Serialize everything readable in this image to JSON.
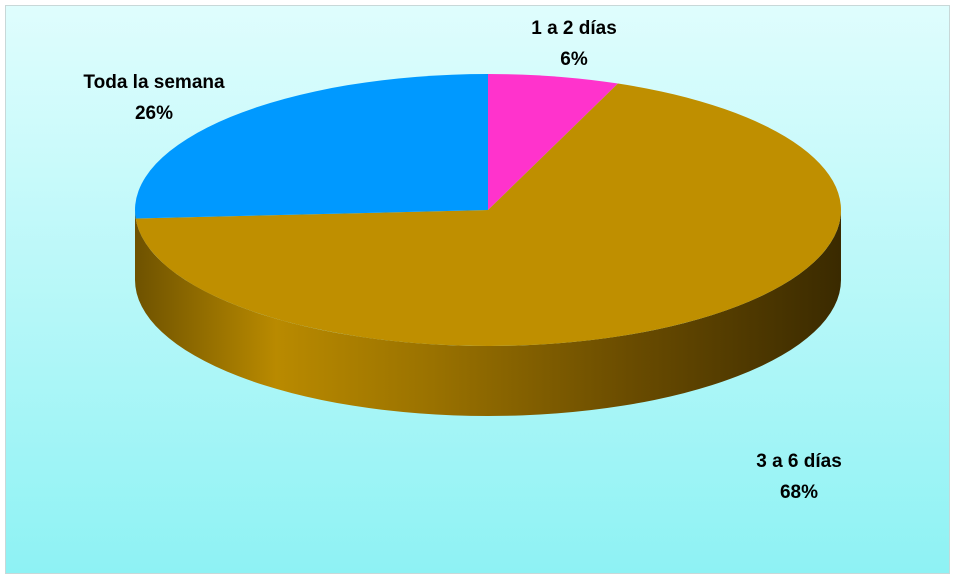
{
  "chart_data": {
    "type": "pie",
    "style": "3d",
    "title": "",
    "slices": [
      {
        "label": "1 a 2 días",
        "value": 6,
        "percent_label": "6%",
        "color": "#ff33cc"
      },
      {
        "label": "3 a 6 días",
        "value": 68,
        "percent_label": "68%",
        "color": "#bf8f00"
      },
      {
        "label": "Toda la semana",
        "value": 26,
        "percent_label": "26%",
        "color": "#0099ff"
      }
    ],
    "background_colors": [
      "#dffdfd",
      "#8ef2f4"
    ]
  }
}
